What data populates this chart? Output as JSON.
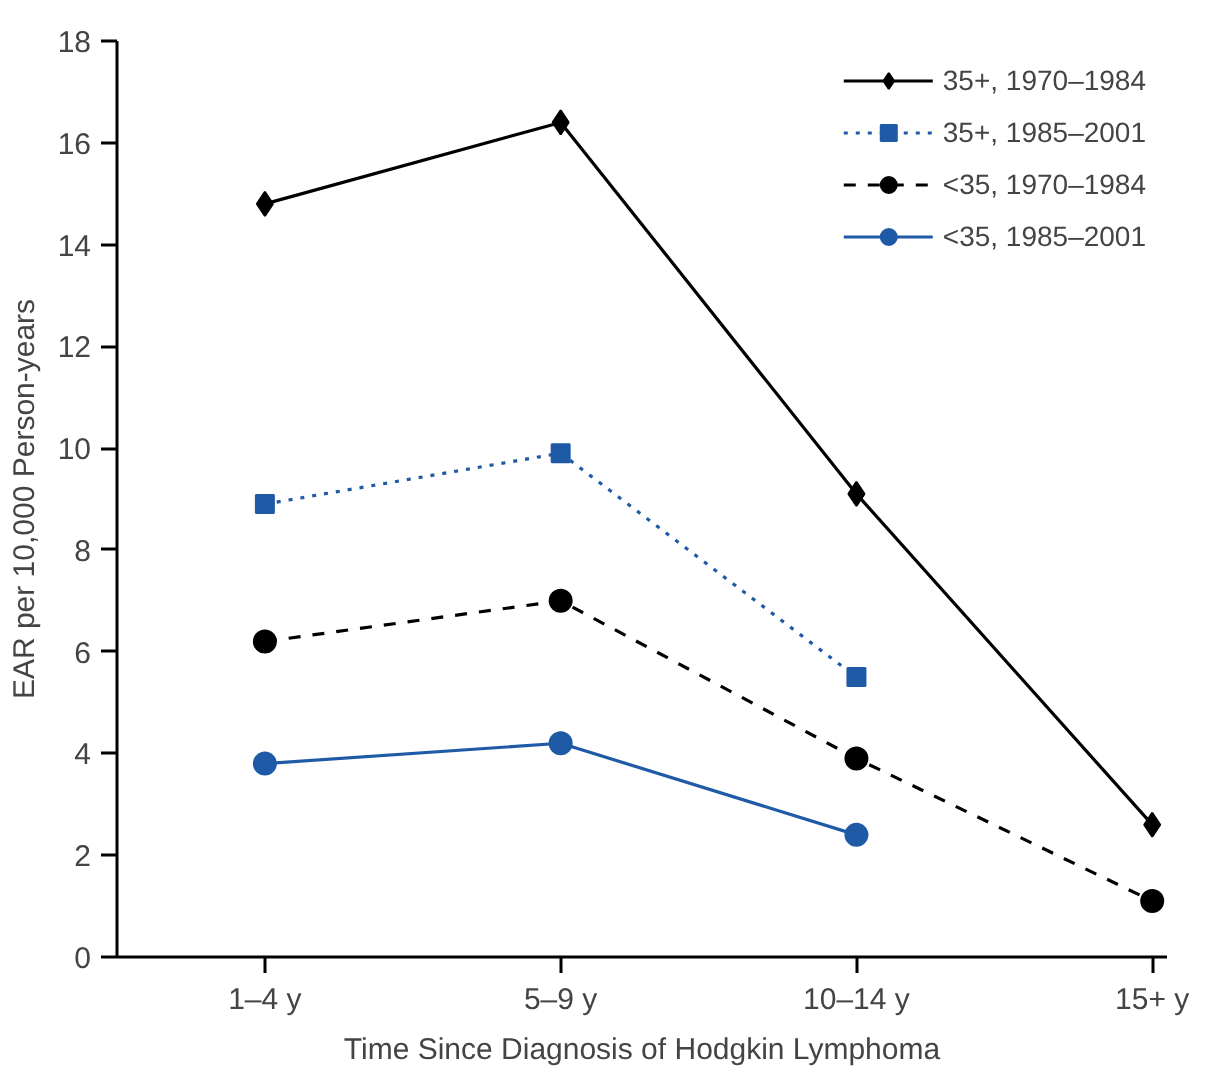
{
  "chart_data": {
    "type": "line",
    "xlabel": "Time Since Diagnosis of Hodgkin Lymphoma",
    "ylabel": "EAR per 10,000 Person-years",
    "categories": [
      "1–4 y",
      "5–9 y",
      "10–14 y",
      "15+ y"
    ],
    "series": [
      {
        "name": "35+, 1970–1984",
        "color": "#000000",
        "marker": "diamond",
        "line_style": "solid",
        "values": [
          14.8,
          16.4,
          9.1,
          2.6
        ]
      },
      {
        "name": "35+, 1985–2001",
        "color": "#1f5aa6",
        "marker": "square",
        "line_style": "dotted",
        "values": [
          8.9,
          9.9,
          5.5,
          null
        ]
      },
      {
        "name": "<35, 1970–1984",
        "color": "#000000",
        "marker": "circle",
        "line_style": "dashed",
        "values": [
          6.2,
          7.0,
          3.9,
          1.1
        ]
      },
      {
        "name": "<35, 1985–2001",
        "color": "#1f5aa6",
        "marker": "circle",
        "line_style": "solid",
        "values": [
          3.8,
          4.2,
          2.4,
          null
        ]
      }
    ],
    "ylim": [
      0,
      18
    ],
    "yticks": [
      0,
      2,
      4,
      6,
      8,
      10,
      12,
      14,
      16,
      18
    ],
    "grid": false,
    "legend": "top right"
  }
}
